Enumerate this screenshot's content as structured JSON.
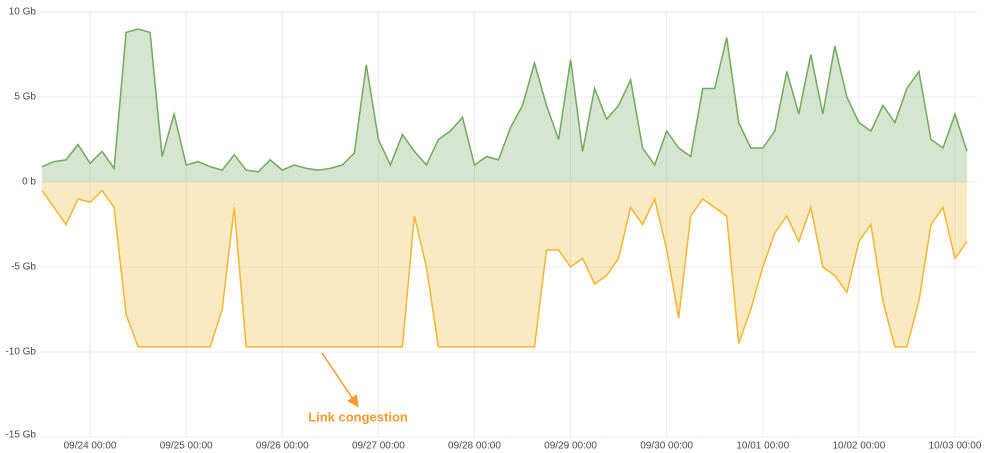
{
  "chart_data": {
    "type": "line",
    "annotations": [
      "Link congestion"
    ],
    "x": [
      "09/23 12:00",
      "09/23 15:00",
      "09/23 18:00",
      "09/23 21:00",
      "09/24 00:00",
      "09/24 03:00",
      "09/24 06:00",
      "09/24 09:00",
      "09/24 12:00",
      "09/24 15:00",
      "09/24 18:00",
      "09/24 21:00",
      "09/25 00:00",
      "09/25 03:00",
      "09/25 06:00",
      "09/25 09:00",
      "09/25 12:00",
      "09/25 15:00",
      "09/25 18:00",
      "09/25 21:00",
      "09/26 00:00",
      "09/26 03:00",
      "09/26 06:00",
      "09/26 09:00",
      "09/26 12:00",
      "09/26 15:00",
      "09/26 18:00",
      "09/26 21:00",
      "09/27 00:00",
      "09/27 03:00",
      "09/27 06:00",
      "09/27 09:00",
      "09/27 12:00",
      "09/27 15:00",
      "09/27 18:00",
      "09/27 21:00",
      "09/28 00:00",
      "09/28 03:00",
      "09/28 06:00",
      "09/28 09:00",
      "09/28 12:00",
      "09/28 15:00",
      "09/28 18:00",
      "09/28 21:00",
      "09/29 00:00",
      "09/29 03:00",
      "09/29 06:00",
      "09/29 09:00",
      "09/29 12:00",
      "09/29 15:00",
      "09/29 18:00",
      "09/29 21:00",
      "09/30 00:00",
      "09/30 03:00",
      "09/30 06:00",
      "09/30 09:00",
      "09/30 12:00",
      "09/30 15:00",
      "09/30 18:00",
      "09/30 21:00",
      "10/01 00:00",
      "10/01 03:00",
      "10/01 06:00",
      "10/01 09:00",
      "10/01 12:00",
      "10/01 15:00",
      "10/01 18:00",
      "10/01 21:00",
      "10/02 00:00",
      "10/02 03:00",
      "10/02 06:00",
      "10/02 09:00",
      "10/02 12:00",
      "10/02 15:00",
      "10/02 18:00",
      "10/02 21:00",
      "10/03 00:00",
      "10/03 03:00"
    ],
    "series": [
      {
        "color": "#73a85f",
        "values": [
          0.9,
          1.2,
          1.3,
          2.2,
          1.1,
          1.8,
          0.8,
          8.8,
          9.0,
          8.8,
          1.5,
          4.0,
          1.0,
          1.2,
          0.9,
          0.7,
          1.6,
          0.7,
          0.6,
          1.3,
          0.7,
          1.0,
          0.8,
          0.7,
          0.8,
          1.0,
          1.7,
          6.9,
          2.5,
          1.0,
          2.8,
          1.8,
          1.0,
          2.5,
          3.0,
          3.8,
          1.0,
          1.5,
          1.3,
          3.2,
          4.5,
          7.0,
          4.5,
          2.5,
          7.2,
          1.8,
          5.5,
          3.7,
          4.5,
          6.0,
          2.0,
          1.0,
          3.0,
          2.0,
          1.5,
          5.5,
          5.5,
          8.5,
          3.5,
          2.0,
          2.0,
          3.0,
          6.5,
          4.0,
          7.5,
          4.0,
          8.0,
          5.0,
          3.5,
          3.0,
          4.5,
          3.5,
          5.5,
          6.5,
          2.5,
          2.0,
          4.0,
          1.8
        ]
      },
      {
        "color": "#f2b632",
        "values": [
          -0.5,
          -1.5,
          -2.5,
          -1.0,
          -1.2,
          -0.5,
          -1.5,
          -7.8,
          -9.7,
          -9.7,
          -9.7,
          -9.7,
          -9.7,
          -9.7,
          -9.7,
          -7.5,
          -1.5,
          -9.7,
          -9.7,
          -9.7,
          -9.7,
          -9.7,
          -9.7,
          -9.7,
          -9.7,
          -9.7,
          -9.7,
          -9.7,
          -9.7,
          -9.7,
          -9.7,
          -2.0,
          -5.0,
          -9.7,
          -9.7,
          -9.7,
          -9.7,
          -9.7,
          -9.7,
          -9.7,
          -9.7,
          -9.7,
          -4.0,
          -4.0,
          -5.0,
          -4.5,
          -6.0,
          -5.5,
          -4.5,
          -1.5,
          -2.5,
          -1.0,
          -4.0,
          -8.0,
          -2.0,
          -1.0,
          -1.5,
          -2.0,
          -9.5,
          -7.5,
          -5.0,
          -3.0,
          -2.0,
          -3.5,
          -1.5,
          -5.0,
          -5.5,
          -6.5,
          -3.5,
          -2.5,
          -7.0,
          -9.7,
          -9.7,
          -7.0,
          -2.5,
          -1.5,
          -4.5,
          -3.5
        ]
      }
    ],
    "xlim": [
      "09/23 11:30",
      "10/03 05:30"
    ],
    "xticks": [
      "09/24 00:00",
      "09/25 00:00",
      "09/26 00:00",
      "09/27 00:00",
      "09/28 00:00",
      "09/29 00:00",
      "09/30 00:00",
      "10/01 00:00",
      "10/02 00:00",
      "10/03 00:00"
    ],
    "ylim": [
      -15,
      10
    ],
    "yticks": [
      {
        "value": -15,
        "label": "-15 Gb"
      },
      {
        "value": -10,
        "label": "-10 Gb"
      },
      {
        "value": -5,
        "label": "-5 Gb"
      },
      {
        "value": 0,
        "label": "0 b"
      },
      {
        "value": 5,
        "label": "5 Gb"
      },
      {
        "value": 10,
        "label": "10 Gb"
      }
    ],
    "grid": true
  }
}
